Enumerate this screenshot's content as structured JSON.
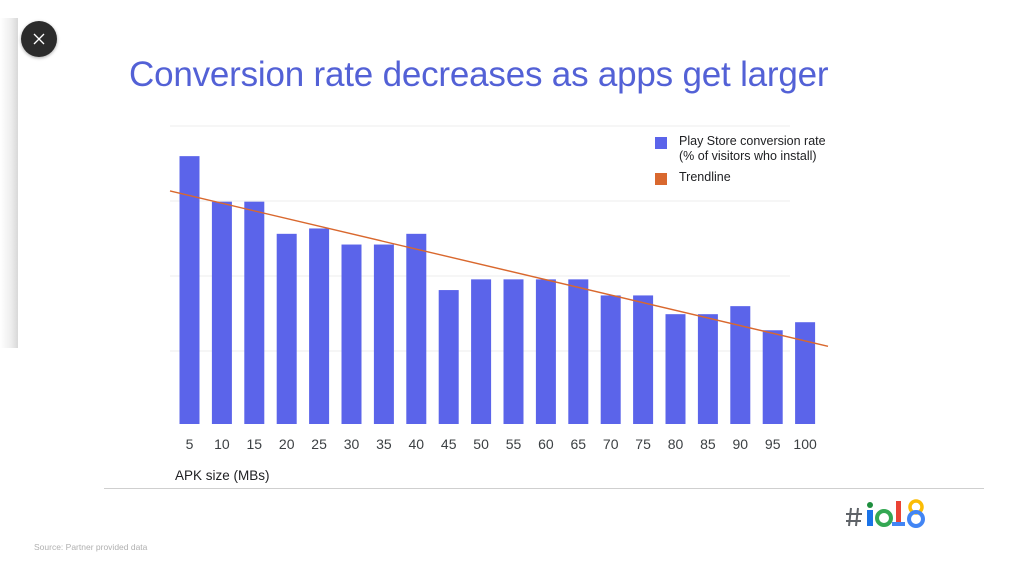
{
  "slide": {
    "title": "Conversion rate decreases as apps get larger",
    "source": "Source: Partner provided data",
    "logo_text": "#io18"
  },
  "controls": {
    "close_icon": "close-icon"
  },
  "colors": {
    "title": "#5361d6",
    "bar": "#5b64ea",
    "trendline": "#d9682e",
    "grid": "#ececec",
    "close_bg": "#2b2b2b"
  },
  "chart_data": {
    "type": "bar",
    "categories": [
      "5",
      "10",
      "15",
      "20",
      "25",
      "30",
      "35",
      "40",
      "45",
      "50",
      "55",
      "60",
      "65",
      "70",
      "75",
      "80",
      "85",
      "90",
      "95",
      "100"
    ],
    "series": [
      {
        "name": "Play Store conversion rate (% of visitors who install)",
        "values": [
          100,
          83,
          83,
          71,
          73,
          67,
          67,
          71,
          50,
          54,
          54,
          54,
          54,
          48,
          48,
          41,
          41,
          44,
          35,
          38
        ]
      }
    ],
    "trendline": {
      "name": "Trendline",
      "start": 87,
      "end": 29
    },
    "xlabel": "APK size (MBs)",
    "ylabel": "",
    "ylim": [
      0,
      112
    ],
    "grid": true,
    "legend": "top-right"
  }
}
